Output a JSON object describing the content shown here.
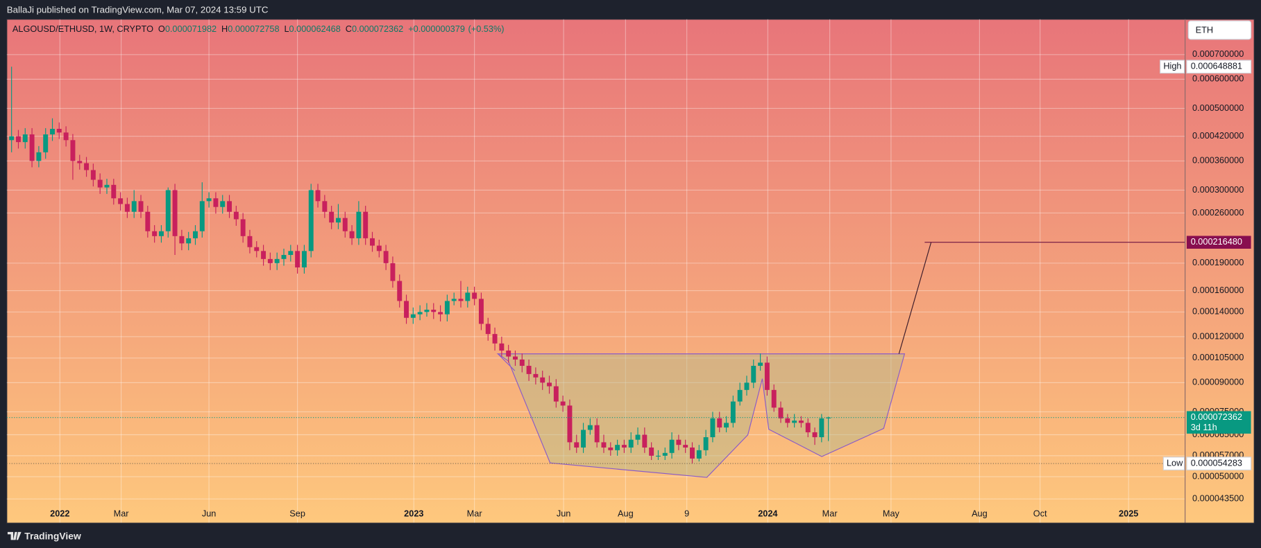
{
  "header": "BallaJi published on TradingView.com, Mar 07, 2024 13:59 UTC",
  "footer": "TradingView",
  "chart_data": {
    "type": "candlestick",
    "symbol": "ALGOUSD/ETHUSD, 1W, CRYPTO",
    "ohlc_labels": [
      "O",
      "H",
      "L",
      "C"
    ],
    "change": "+0.000000379",
    "change_pct": "(+0.53%)",
    "currency": "ETH",
    "high_label": "High",
    "low_label": "Low",
    "countdown": "3d 11h",
    "target": {
      "value": 0.00021648,
      "label": "0.000216480"
    },
    "up_color": "#089981",
    "down_color": "#c8205d",
    "log_scale": true,
    "grid": true,
    "xlim": [
      -0.7,
      172.4
    ],
    "xticks": [
      {
        "value": 7.1,
        "label": "2022"
      },
      {
        "value": 16.1,
        "label": "Mar"
      },
      {
        "value": 29.0,
        "label": "Jun"
      },
      {
        "value": 42.0,
        "label": "Sep"
      },
      {
        "value": 59.1,
        "label": "2023"
      },
      {
        "value": 68.0,
        "label": "Mar"
      },
      {
        "value": 81.1,
        "label": "Jun"
      },
      {
        "value": 90.2,
        "label": "Aug"
      },
      {
        "value": 99.2,
        "label": "9"
      },
      {
        "value": 111.1,
        "label": "2024"
      },
      {
        "value": 120.2,
        "label": "Mar"
      },
      {
        "value": 129.2,
        "label": "May"
      },
      {
        "value": 142.2,
        "label": "Aug"
      },
      {
        "value": 151.1,
        "label": "Oct"
      },
      {
        "value": 164.1,
        "label": "2025"
      }
    ],
    "ylim": [
      3.74e-05,
      0.000873
    ],
    "yticks": [
      {
        "value": 0.0007,
        "label": "0.000700000"
      },
      {
        "value": 0.0006,
        "label": "0.000600000"
      },
      {
        "value": 0.0005,
        "label": "0.000500000"
      },
      {
        "value": 0.00042,
        "label": "0.000420000"
      },
      {
        "value": 0.00036,
        "label": "0.000360000"
      },
      {
        "value": 0.0003,
        "label": "0.000300000"
      },
      {
        "value": 0.00026,
        "label": "0.000260000"
      },
      {
        "value": 0.00019,
        "label": "0.000190000"
      },
      {
        "value": 0.00016,
        "label": "0.000160000"
      },
      {
        "value": 0.00014,
        "label": "0.000140000"
      },
      {
        "value": 0.00012,
        "label": "0.000120000"
      },
      {
        "value": 0.000105,
        "label": "0.000105000"
      },
      {
        "value": 9e-05,
        "label": "0.000090000"
      },
      {
        "value": 7.5e-05,
        "label": "0.000075000"
      },
      {
        "value": 6.5e-05,
        "label": "0.000065000"
      },
      {
        "value": 5.7e-05,
        "label": "0.000057000"
      },
      {
        "value": 5e-05,
        "label": "0.000050000"
      },
      {
        "value": 4.35e-05,
        "label": "0.000043500"
      }
    ],
    "open": [
      0.00041,
      0.00042,
      0.000405,
      0.000425,
      0.00036,
      0.00038,
      0.000425,
      0.00044,
      0.00043,
      0.00041,
      0.00036,
      0.000355,
      0.00034,
      0.00032,
      0.000305,
      0.00031,
      0.000285,
      0.000275,
      0.000262,
      0.00028,
      0.000262,
      0.000232,
      0.000225,
      0.000232,
      0.0003,
      0.000225,
      0.000215,
      0.000222,
      0.000232,
      0.00028,
      0.000285,
      0.00027,
      0.00028,
      0.000262,
      0.00025,
      0.000225,
      0.00021,
      0.000205,
      0.000195,
      0.00019,
      0.000195,
      0.0002,
      0.000205,
      0.000185,
      0.000205,
      0.0003,
      0.00028,
      0.000262,
      0.000245,
      0.000252,
      0.000232,
      0.000222,
      0.000262,
      0.000222,
      0.000212,
      0.000205,
      0.00019,
      0.00017,
      0.00015,
      0.000135,
      0.000138,
      0.00014,
      0.000142,
      0.00014,
      0.000138,
      0.00015,
      0.000152,
      0.00015,
      0.000158,
      0.000152,
      0.00013,
      0.000122,
      0.000115,
      0.00011,
      0.000106,
      0.000104,
      0.0001,
      9.5e-05,
      9.3e-05,
      9e-05,
      8.8e-05,
      8e-05,
      7.8e-05,
      6.2e-05,
      6e-05,
      6.7e-05,
      6.9e-05,
      6.2e-05,
      6e-05,
      5.9e-05,
      6.1e-05,
      6e-05,
      6.3e-05,
      6.5e-05,
      6e-05,
      5.7e-05,
      5.7e-05,
      5.8e-05,
      6.3e-05,
      6.1e-05,
      6e-05,
      5.6e-05,
      5.9e-05,
      6.4e-05,
      7.2e-05,
      6.8e-05,
      7e-05,
      8e-05,
      8.6e-05,
      9e-05,
      0.0001,
      0.000102,
      8.6e-05,
      7.7e-05,
      7.2e-05,
      7e-05,
      7.1e-05,
      7e-05,
      6.6e-05,
      6.4e-05,
      7.1982e-05
    ],
    "high": [
      0.000648881,
      0.000437,
      0.000442,
      0.000442,
      0.000395,
      0.000442,
      0.00047,
      0.000458,
      0.000447,
      0.000426,
      0.000374,
      0.000369,
      0.000354,
      0.000333,
      0.000322,
      0.000322,
      0.000296,
      0.000286,
      0.0003,
      0.000291,
      0.000272,
      0.000241,
      0.000241,
      0.000305,
      0.000312,
      0.000234,
      0.000231,
      0.000241,
      0.000315,
      0.000296,
      0.000296,
      0.000291,
      0.000291,
      0.000272,
      0.00026,
      0.000234,
      0.000218,
      0.000213,
      0.000203,
      0.000203,
      0.000208,
      0.000213,
      0.000213,
      0.000213,
      0.000312,
      0.000312,
      0.000291,
      0.000272,
      0.000275,
      0.000262,
      0.000241,
      0.00028,
      0.000272,
      0.000231,
      0.00022,
      0.000213,
      0.000198,
      0.000177,
      0.000156,
      0.000144,
      0.000146,
      0.000148,
      0.000148,
      0.000146,
      0.000156,
      0.000158,
      0.00017,
      0.000164,
      0.000164,
      0.000158,
      0.000135,
      0.000127,
      0.00012,
      0.000114,
      0.00011,
      0.000108,
      0.000104,
      9.9e-05,
      9.7e-05,
      9.4e-05,
      9.2e-05,
      8.3e-05,
      8.1e-05,
      6.5e-05,
      7e-05,
      7.2e-05,
      7.2e-05,
      6.5e-05,
      6.2e-05,
      6.3e-05,
      6.3e-05,
      6.6e-05,
      6.8e-05,
      6.8e-05,
      6.2e-05,
      5.9e-05,
      6e-05,
      6.6e-05,
      6.5e-05,
      6.3e-05,
      6.2e-05,
      6.1e-05,
      6.7e-05,
      7.5e-05,
      7.5e-05,
      7.3e-05,
      8.3e-05,
      9e-05,
      9.4e-05,
      0.000104,
      0.000108,
      0.000106,
      8.9e-05,
      8e-05,
      7.4e-05,
      7.4e-05,
      7.3e-05,
      7.2e-05,
      6.8e-05,
      7.4e-05,
      7.2758e-05
    ],
    "low": [
      0.00038,
      0.000389,
      0.000389,
      0.000346,
      0.000346,
      0.000365,
      0.000408,
      0.000413,
      0.000394,
      0.00032,
      0.000341,
      0.000326,
      0.000307,
      0.000293,
      0.000293,
      0.000274,
      0.000264,
      0.000252,
      0.000252,
      0.000252,
      0.000223,
      0.000216,
      0.000216,
      0.000223,
      0.0002,
      0.000206,
      0.000206,
      0.000213,
      0.000223,
      0.000269,
      0.000259,
      0.000259,
      0.000252,
      0.00024,
      0.000216,
      0.000202,
      0.000197,
      0.000187,
      0.000182,
      0.000182,
      0.000187,
      0.000192,
      0.000178,
      0.000178,
      0.000197,
      0.000269,
      0.000252,
      0.000235,
      0.000235,
      0.000223,
      0.000213,
      0.000213,
      0.000213,
      0.000204,
      0.000197,
      0.000182,
      0.000163,
      0.000144,
      0.00013,
      0.00013,
      0.000133,
      0.000136,
      0.000134,
      0.000132,
      0.000132,
      0.000146,
      0.000144,
      0.000144,
      0.000146,
      0.000125,
      0.000117,
      0.00011,
      0.000106,
      0.000102,
      0.0001,
      9.6e-05,
      9.1e-05,
      8.9e-05,
      8.6e-05,
      8.4e-05,
      7.7e-05,
      7.5e-05,
      5.9e-05,
      5.8e-05,
      5.8e-05,
      6.5e-05,
      6e-05,
      5.8e-05,
      5.7e-05,
      5.7e-05,
      5.8e-05,
      5.8e-05,
      6.1e-05,
      5.8e-05,
      5.55e-05,
      5.55e-05,
      5.55e-05,
      5.6e-05,
      5.9e-05,
      5.8e-05,
      5.4283e-05,
      5.5e-05,
      5.7e-05,
      6.2e-05,
      6.6e-05,
      6.6e-05,
      6.8e-05,
      7.8e-05,
      8.3e-05,
      8.7e-05,
      9.7e-05,
      8.3e-05,
      7.5e-05,
      7e-05,
      6.8e-05,
      6.8e-05,
      6.8e-05,
      6.4e-05,
      6.1e-05,
      6.2e-05,
      6.2468e-05
    ],
    "close": [
      0.00042,
      0.000405,
      0.000425,
      0.00036,
      0.00038,
      0.000425,
      0.00044,
      0.00043,
      0.00041,
      0.00036,
      0.000355,
      0.00034,
      0.00032,
      0.000305,
      0.00031,
      0.000285,
      0.000275,
      0.000262,
      0.00028,
      0.000262,
      0.000232,
      0.000225,
      0.000232,
      0.0003,
      0.000225,
      0.000215,
      0.000222,
      0.000232,
      0.00028,
      0.000285,
      0.00027,
      0.00028,
      0.000262,
      0.00025,
      0.000225,
      0.00021,
      0.000205,
      0.000195,
      0.00019,
      0.000195,
      0.0002,
      0.000205,
      0.000185,
      0.000205,
      0.0003,
      0.00028,
      0.000262,
      0.000245,
      0.000252,
      0.000232,
      0.000222,
      0.000262,
      0.000222,
      0.000212,
      0.000205,
      0.00019,
      0.00017,
      0.00015,
      0.000135,
      0.000138,
      0.00014,
      0.000142,
      0.00014,
      0.000138,
      0.00015,
      0.000152,
      0.00015,
      0.000158,
      0.000152,
      0.00013,
      0.000122,
      0.000115,
      0.00011,
      0.000106,
      0.000104,
      0.0001,
      9.5e-05,
      9.3e-05,
      9e-05,
      8.8e-05,
      8e-05,
      7.8e-05,
      6.2e-05,
      6e-05,
      6.7e-05,
      6.9e-05,
      6.2e-05,
      6e-05,
      5.9e-05,
      6.1e-05,
      6e-05,
      6.3e-05,
      6.5e-05,
      6e-05,
      5.7e-05,
      5.7e-05,
      5.8e-05,
      6.3e-05,
      6.1e-05,
      6e-05,
      5.6e-05,
      5.9e-05,
      6.4e-05,
      7.2e-05,
      6.8e-05,
      7e-05,
      8e-05,
      8.6e-05,
      9e-05,
      0.0001,
      0.000102,
      8.6e-05,
      7.7e-05,
      7.2e-05,
      7e-05,
      7.1e-05,
      7e-05,
      6.6e-05,
      6.4e-05,
      7.2e-05,
      7.2362e-05
    ]
  }
}
